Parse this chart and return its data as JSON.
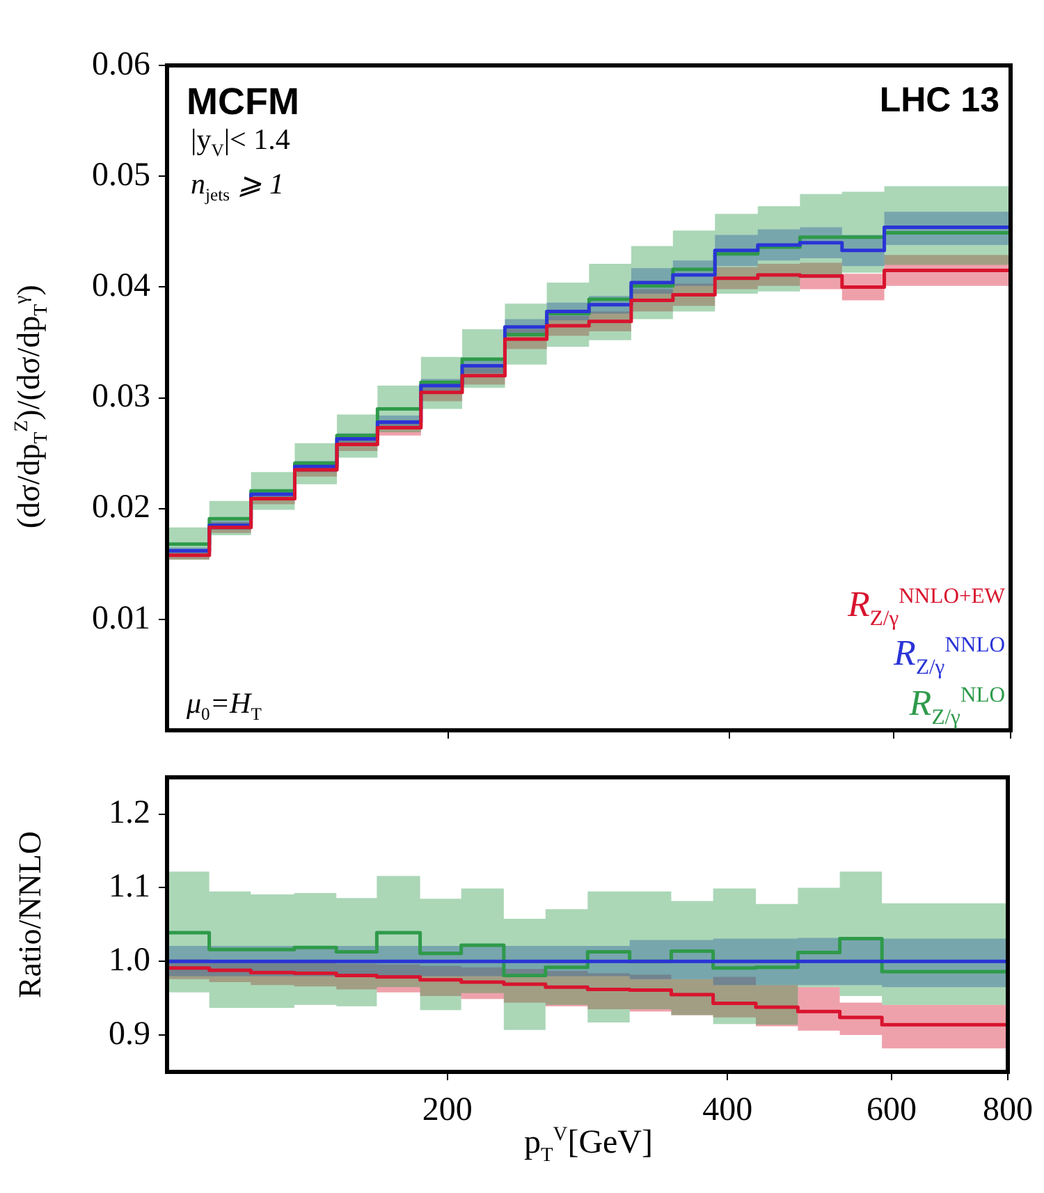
{
  "chart_data": [
    {
      "type": "step",
      "ylabel": "(dσ/dp$_{T}$$^{Z}$)/(dσ/dp$_{T}$$^{γ}$)",
      "annotations": [
        "MCFM",
        "LHC 13",
        "|y$_{V}$|< 1.4",
        "n$_{jets}$ ⩾ 1",
        "μ$_{0}$=H$_{T}$"
      ],
      "x": [
        100,
        111,
        123,
        137,
        152,
        168,
        187,
        207,
        230,
        255,
        283,
        314,
        348,
        386,
        429,
        476,
        528,
        586,
        800
      ],
      "series": [
        {
          "name": "R$_{Z/γ}$$^{NNLO+EW}$",
          "color": "#d8142e",
          "values": [
            0.0158,
            0.0183,
            0.0209,
            0.0235,
            0.0258,
            0.0273,
            0.0305,
            0.032,
            0.0353,
            0.0365,
            0.0369,
            0.0388,
            0.0393,
            0.0408,
            0.0411,
            0.041,
            0.04,
            0.0415,
            0.0415
          ],
          "lower": [
            0.0154,
            0.0178,
            0.0204,
            0.0229,
            0.0252,
            0.0266,
            0.0297,
            0.0312,
            0.0344,
            0.0356,
            0.036,
            0.0378,
            0.0383,
            0.0398,
            0.0401,
            0.0398,
            0.0388,
            0.0401,
            0.0401
          ],
          "upper": [
            0.0162,
            0.0188,
            0.0214,
            0.0241,
            0.0264,
            0.028,
            0.0313,
            0.0328,
            0.0362,
            0.0374,
            0.0378,
            0.0398,
            0.0403,
            0.0418,
            0.0421,
            0.0422,
            0.0412,
            0.0429,
            0.0429
          ]
        },
        {
          "name": "R$_{Z/γ}$$^{NNLO}$",
          "color": "#2a34d6",
          "values": [
            0.0162,
            0.0185,
            0.0213,
            0.0238,
            0.0263,
            0.0278,
            0.0311,
            0.0329,
            0.0364,
            0.0378,
            0.0384,
            0.0404,
            0.0411,
            0.0433,
            0.0438,
            0.044,
            0.0433,
            0.0454,
            0.0454
          ],
          "lower": [
            0.0159,
            0.0181,
            0.0209,
            0.0233,
            0.0258,
            0.0272,
            0.0305,
            0.0322,
            0.0357,
            0.037,
            0.0376,
            0.0394,
            0.0401,
            0.0419,
            0.0424,
            0.0426,
            0.0419,
            0.0438,
            0.0438
          ],
          "upper": [
            0.0165,
            0.0189,
            0.0217,
            0.0243,
            0.0268,
            0.0284,
            0.0317,
            0.0336,
            0.0371,
            0.0386,
            0.0392,
            0.0417,
            0.0424,
            0.0447,
            0.0452,
            0.0454,
            0.0447,
            0.0468,
            0.0468
          ]
        },
        {
          "name": "R$_{Z/γ}$$^{NLO}$",
          "color": "#2e9a4a",
          "values": [
            0.0168,
            0.0191,
            0.0216,
            0.0241,
            0.0266,
            0.029,
            0.0314,
            0.0335,
            0.0357,
            0.0376,
            0.0389,
            0.0401,
            0.0416,
            0.043,
            0.0436,
            0.0445,
            0.0445,
            0.0449,
            0.0449
          ],
          "lower": [
            0.0154,
            0.0176,
            0.0199,
            0.0222,
            0.0246,
            0.0269,
            0.029,
            0.0309,
            0.033,
            0.0346,
            0.0352,
            0.0371,
            0.0378,
            0.0394,
            0.0396,
            0.0408,
            0.0413,
            0.042,
            0.042
          ],
          "upper": [
            0.0183,
            0.0207,
            0.0233,
            0.0259,
            0.0285,
            0.0311,
            0.0337,
            0.0362,
            0.0385,
            0.0404,
            0.0421,
            0.0437,
            0.0451,
            0.0466,
            0.0473,
            0.0484,
            0.0486,
            0.0491,
            0.0491
          ]
        }
      ],
      "log": "x",
      "xlim": [
        100,
        800
      ],
      "xticks": [
        200,
        400,
        600,
        800
      ],
      "ylim": [
        0,
        0.06
      ],
      "yticks": [
        0.01,
        0.02,
        0.03,
        0.04,
        0.05,
        0.06
      ],
      "tick_labels": "y",
      "legend": "bottom right"
    },
    {
      "type": "step",
      "xlabel": "p$_{T}$$^{V}$[GeV]",
      "ylabel": "Ratio/NNLO",
      "x": [
        100,
        111,
        123,
        137,
        152,
        168,
        187,
        207,
        230,
        255,
        283,
        314,
        348,
        386,
        429,
        476,
        528,
        586,
        800
      ],
      "series": [
        {
          "color": "#d8142e",
          "values": [
            0.991,
            0.988,
            0.985,
            0.984,
            0.981,
            0.979,
            0.975,
            0.972,
            0.969,
            0.965,
            0.962,
            0.961,
            0.955,
            0.943,
            0.938,
            0.932,
            0.924,
            0.914,
            0.914
          ],
          "lower": [
            0.976,
            0.972,
            0.968,
            0.966,
            0.962,
            0.958,
            0.953,
            0.949,
            0.944,
            0.939,
            0.935,
            0.932,
            0.927,
            0.924,
            0.912,
            0.906,
            0.9,
            0.882,
            0.882
          ],
          "upper": [
            1.003,
            1.002,
            1.0,
            0.999,
            0.997,
            0.996,
            0.994,
            0.992,
            0.99,
            0.987,
            0.984,
            0.982,
            0.976,
            0.979,
            0.968,
            0.965,
            0.944,
            0.941,
            0.941
          ]
        },
        {
          "color": "#2a34d6",
          "values": [
            1,
            1,
            1,
            1,
            1,
            1,
            1,
            1,
            1,
            1,
            1,
            1,
            1,
            1,
            1,
            1,
            1,
            1,
            1
          ],
          "lower": [
            0.98,
            0.98,
            0.98,
            0.98,
            0.98,
            0.98,
            0.98,
            0.98,
            0.98,
            0.98,
            0.98,
            0.976,
            0.976,
            0.968,
            0.968,
            0.968,
            0.968,
            0.965,
            0.965
          ],
          "upper": [
            1.021,
            1.021,
            1.021,
            1.021,
            1.021,
            1.021,
            1.021,
            1.021,
            1.021,
            1.021,
            1.021,
            1.029,
            1.029,
            1.031,
            1.031,
            1.032,
            1.032,
            1.031,
            1.031
          ]
        },
        {
          "color": "#2e9a4a",
          "values": [
            1.039,
            1.016,
            1.016,
            1.019,
            1.013,
            1.039,
            1.011,
            1.022,
            0.981,
            0.992,
            1.013,
            1.0,
            1.014,
            0.991,
            0.992,
            1.012,
            1.031,
            0.986,
            0.986
          ],
          "lower": [
            0.958,
            0.937,
            0.937,
            0.941,
            0.939,
            0.965,
            0.934,
            0.957,
            0.907,
            0.941,
            0.917,
            0.935,
            0.927,
            0.915,
            0.914,
            0.965,
            0.953,
            0.941,
            0.941
          ],
          "upper": [
            1.122,
            1.095,
            1.091,
            1.093,
            1.086,
            1.116,
            1.085,
            1.099,
            1.058,
            1.071,
            1.095,
            1.095,
            1.082,
            1.099,
            1.078,
            1.1,
            1.122,
            1.079,
            1.079
          ]
        }
      ],
      "log": "x",
      "xlim": [
        100,
        800
      ],
      "xticks": [
        200,
        400,
        600,
        800
      ],
      "ylim": [
        0.85,
        1.25
      ],
      "yticks": [
        0.9,
        {
          "value": 1.0,
          "label": "1.0"
        },
        1.1,
        1.2
      ]
    }
  ]
}
